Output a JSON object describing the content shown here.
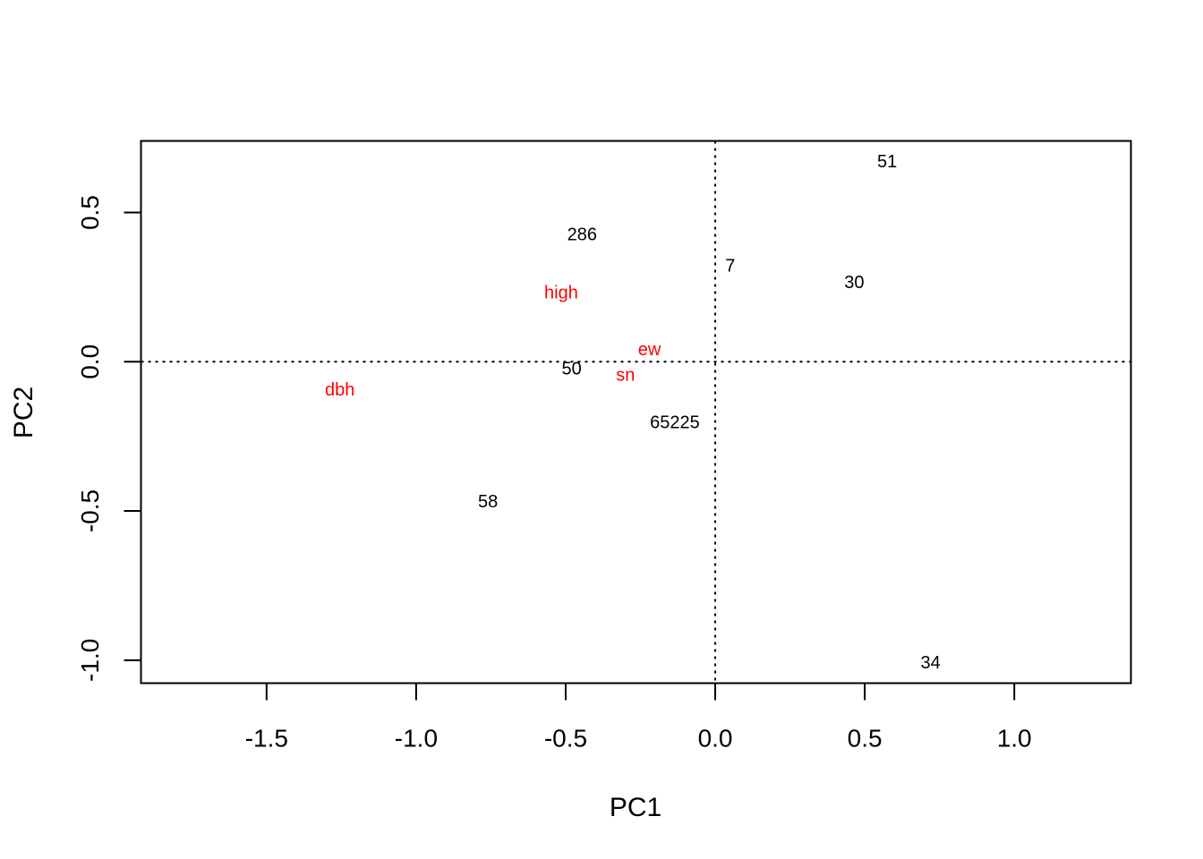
{
  "chart_data": {
    "type": "scatter",
    "title": "",
    "xlabel": "PC1",
    "ylabel": "PC2",
    "xlim": [
      -1.92,
      1.39
    ],
    "ylim": [
      -1.077,
      0.74
    ],
    "x_ticks": [
      {
        "value": -1.5,
        "label": "-1.5"
      },
      {
        "value": -1.0,
        "label": "-1.0"
      },
      {
        "value": -0.5,
        "label": "-0.5"
      },
      {
        "value": 0.0,
        "label": "0.0"
      },
      {
        "value": 0.5,
        "label": "0.5"
      },
      {
        "value": 1.0,
        "label": "1.0"
      }
    ],
    "y_ticks": [
      {
        "value": -1.0,
        "label": "-1.0"
      },
      {
        "value": -0.5,
        "label": "-0.5"
      },
      {
        "value": 0.0,
        "label": "0.0"
      },
      {
        "value": 0.5,
        "label": "0.5"
      }
    ],
    "reference_lines": {
      "x": 0,
      "y": 0,
      "style": "dotted"
    },
    "grid": false,
    "observations": {
      "color": "#000000",
      "points": [
        {
          "label": "51",
          "x": 0.575,
          "y": 0.67
        },
        {
          "label": "286",
          "x": -0.445,
          "y": 0.425
        },
        {
          "label": "7",
          "x": 0.05,
          "y": 0.32
        },
        {
          "label": "30",
          "x": 0.465,
          "y": 0.265
        },
        {
          "label": "50",
          "x": -0.48,
          "y": -0.025
        },
        {
          "label": "65225",
          "x": -0.135,
          "y": -0.205
        },
        {
          "label": "58",
          "x": -0.76,
          "y": -0.47
        },
        {
          "label": "34",
          "x": 0.72,
          "y": -1.01
        }
      ]
    },
    "variables": {
      "color": "#ff0000",
      "points": [
        {
          "label": "high",
          "x": -0.515,
          "y": 0.23
        },
        {
          "label": "ew",
          "x": -0.22,
          "y": 0.04
        },
        {
          "label": "sn",
          "x": -0.3,
          "y": -0.045
        },
        {
          "label": "dbh",
          "x": -1.255,
          "y": -0.095
        }
      ]
    }
  }
}
